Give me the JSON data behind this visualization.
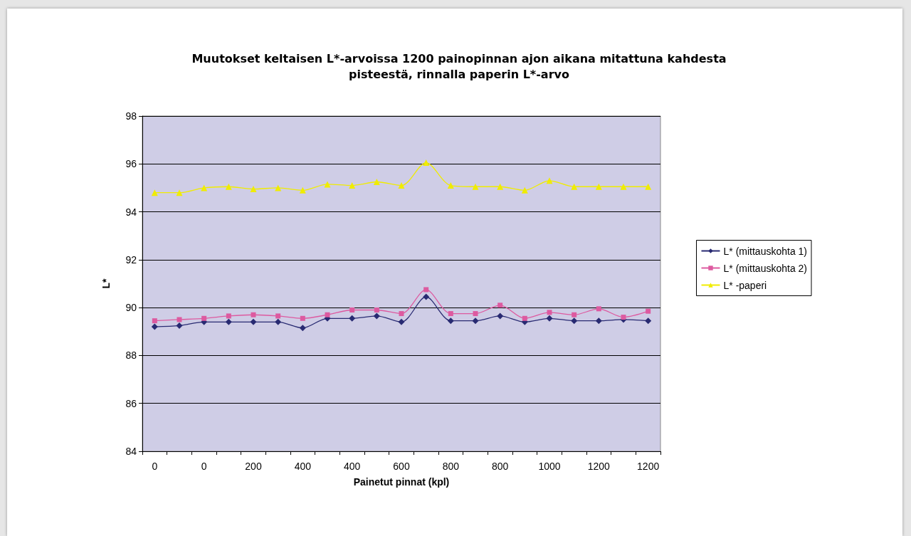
{
  "chart_data": {
    "type": "line",
    "title": "Muutokset keltaisen L*-arvoissa 1200 painopinnan ajon aikana mitattuna kahdesta\npisteestä, rinnalla paperin L*-arvo",
    "xlabel": "Painetut pinnat (kpl)",
    "ylabel": "L*",
    "categories": [
      "0",
      null,
      "0",
      null,
      "200",
      null,
      "400",
      null,
      "400",
      null,
      "600",
      null,
      "800",
      null,
      "800",
      null,
      "1000",
      null,
      "1200",
      null,
      "1200"
    ],
    "series": [
      {
        "name": "L* (mittauskohta 1)",
        "color": "#282a72",
        "marker": "diamond",
        "values": [
          89.2,
          89.25,
          89.4,
          89.4,
          89.4,
          89.4,
          89.15,
          89.55,
          89.55,
          89.65,
          89.4,
          90.45,
          89.45,
          89.45,
          89.65,
          89.4,
          89.55,
          89.45,
          89.45,
          89.5,
          89.45
        ]
      },
      {
        "name": "L* (mittauskohta 2)",
        "color": "#dd5aa0",
        "marker": "square",
        "values": [
          89.45,
          89.5,
          89.55,
          89.65,
          89.7,
          89.65,
          89.55,
          89.7,
          89.9,
          89.9,
          89.75,
          90.75,
          89.75,
          89.75,
          90.1,
          89.55,
          89.8,
          89.7,
          89.95,
          89.6,
          89.85
        ]
      },
      {
        "name": "L* -paperi",
        "color": "#f0ec00",
        "marker": "triangle",
        "values": [
          94.8,
          94.8,
          95.0,
          95.05,
          94.95,
          95.0,
          94.9,
          95.15,
          95.1,
          95.25,
          95.1,
          96.05,
          95.1,
          95.05,
          95.05,
          94.9,
          95.3,
          95.05,
          95.05,
          95.05,
          95.05
        ]
      }
    ],
    "ylim": [
      84,
      98
    ],
    "yticks": [
      84,
      86,
      88,
      90,
      92,
      94,
      96,
      98
    ],
    "grid": "y",
    "legend": "right",
    "line_style": "solid"
  }
}
